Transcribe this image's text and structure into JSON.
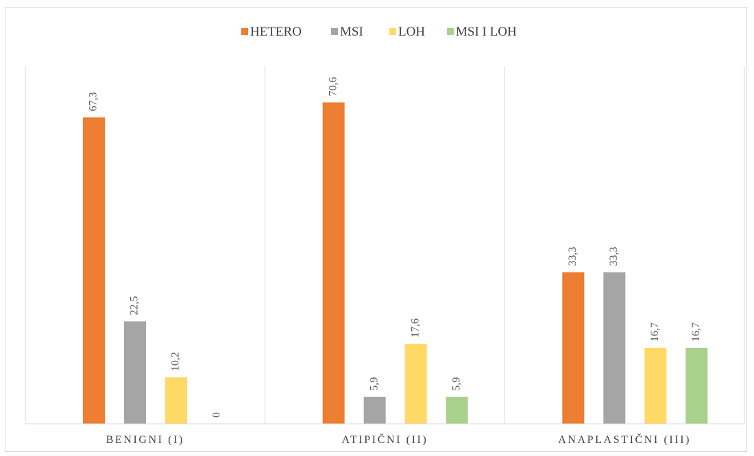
{
  "chart_data": {
    "type": "bar",
    "categories": [
      "BENIGNI (I)",
      "ATIPIČNI (II)",
      "ANAPLASTIČNI (III)"
    ],
    "series": [
      {
        "name": "HETERO",
        "color": "#ED7D31",
        "values": [
          67.3,
          70.6,
          33.3
        ]
      },
      {
        "name": "MSI",
        "color": "#A5A5A5",
        "values": [
          22.5,
          5.9,
          33.3
        ]
      },
      {
        "name": "LOH",
        "color": "#FFD966",
        "values": [
          10.2,
          17.6,
          16.7
        ]
      },
      {
        "name": "MSI I LOH",
        "color": "#A9D18E",
        "values": [
          0,
          5.9,
          16.7
        ]
      }
    ],
    "data_labels": [
      [
        "67,3",
        "70,6",
        "33,3"
      ],
      [
        "22,5",
        "5,9",
        "33,3"
      ],
      [
        "10,2",
        "17,6",
        "16,7"
      ],
      [
        "0",
        "5,9",
        "16,7"
      ]
    ],
    "ylim": [
      0,
      80
    ],
    "legend_position": "top",
    "grid": false,
    "category_separators": true
  }
}
